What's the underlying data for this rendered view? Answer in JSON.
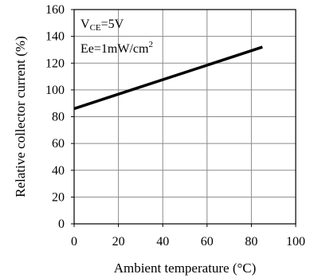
{
  "chart_data": {
    "type": "line",
    "xlabel": "Ambient temperature (°C)",
    "ylabel": "Relative collector current (%)",
    "xlim": [
      0,
      100
    ],
    "ylim": [
      0,
      160
    ],
    "xticks": [
      0,
      20,
      40,
      60,
      80,
      100
    ],
    "yticks": [
      0,
      20,
      40,
      60,
      80,
      100,
      120,
      140,
      160
    ],
    "grid": true,
    "annotations": {
      "vce": {
        "main": "V",
        "sub": "CE",
        "rest": "=5V"
      },
      "ee": {
        "main": "Ee=1mW/cm",
        "sup": "2"
      }
    },
    "series": [
      {
        "color": "#000000",
        "x": [
          0,
          85
        ],
        "y": [
          86,
          132
        ]
      }
    ]
  }
}
